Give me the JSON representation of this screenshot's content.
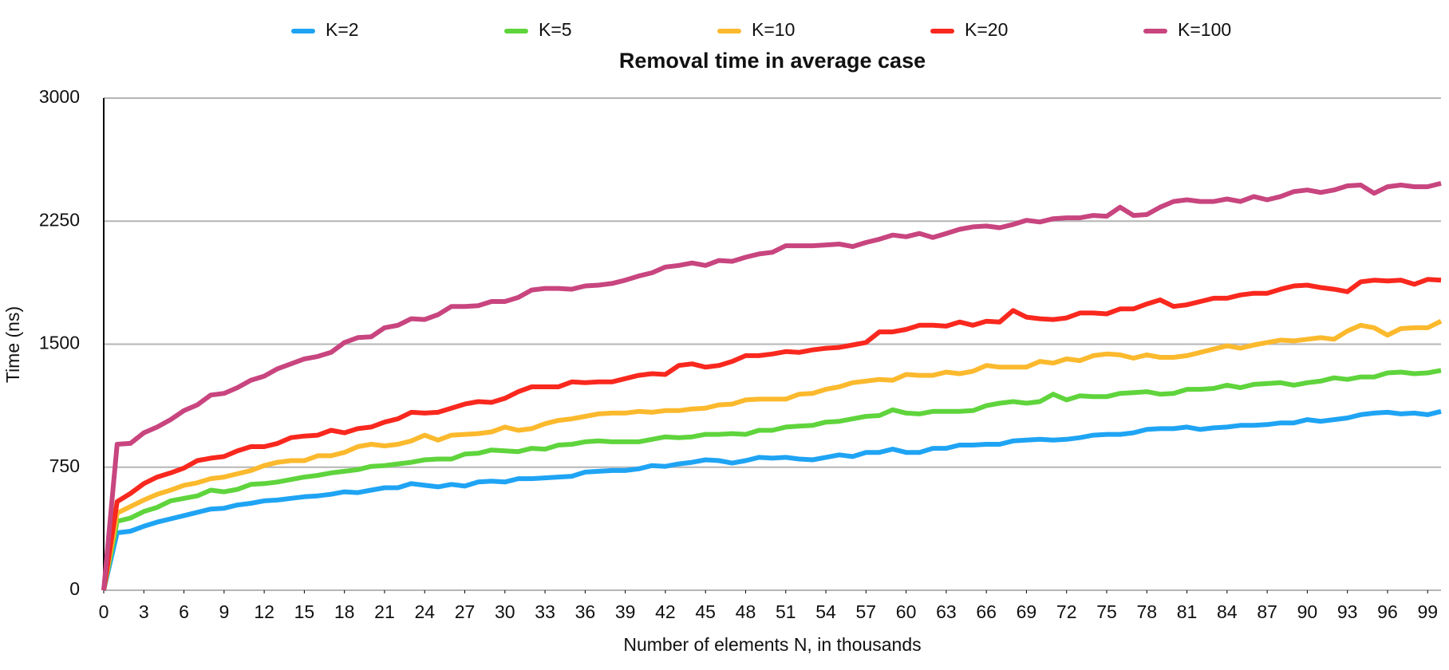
{
  "chart_data": {
    "type": "line",
    "title": "Removal time in average case",
    "x_label": "Number of elements N, in thousands",
    "y_label": "Time (ns)",
    "x": [
      0,
      1,
      2,
      3,
      4,
      5,
      6,
      7,
      8,
      9,
      10,
      11,
      12,
      13,
      14,
      15,
      16,
      17,
      18,
      19,
      20,
      21,
      22,
      23,
      24,
      25,
      26,
      27,
      28,
      29,
      30,
      31,
      32,
      33,
      34,
      35,
      36,
      37,
      38,
      39,
      40,
      41,
      42,
      43,
      44,
      45,
      46,
      47,
      48,
      49,
      50,
      51,
      52,
      53,
      54,
      55,
      56,
      57,
      58,
      59,
      60,
      61,
      62,
      63,
      64,
      65,
      66,
      67,
      68,
      69,
      70,
      71,
      72,
      73,
      74,
      75,
      76,
      77,
      78,
      79,
      80,
      81,
      82,
      83,
      84,
      85,
      86,
      87,
      88,
      89,
      90,
      91,
      92,
      93,
      94,
      95,
      96,
      97,
      98,
      99,
      100
    ],
    "xlim": [
      0,
      100
    ],
    "xticks": [
      0,
      3,
      6,
      9,
      12,
      15,
      18,
      21,
      24,
      27,
      30,
      33,
      36,
      39,
      42,
      45,
      48,
      51,
      54,
      57,
      60,
      63,
      66,
      69,
      72,
      75,
      78,
      81,
      84,
      87,
      90,
      93,
      96,
      99
    ],
    "ylim": [
      0,
      3000
    ],
    "yticks": [
      0,
      750,
      1500,
      2250,
      3000
    ],
    "grid": true,
    "legend": "top",
    "series": [
      {
        "name": "K=2",
        "color": "#1fa4f4",
        "values": [
          0,
          350,
          360,
          390,
          415,
          435,
          455,
          475,
          495,
          500,
          520,
          530,
          545,
          550,
          560,
          570,
          575,
          585,
          600,
          595,
          610,
          625,
          625,
          650,
          640,
          630,
          645,
          635,
          660,
          665,
          660,
          680,
          680,
          685,
          690,
          695,
          720,
          725,
          730,
          730,
          740,
          760,
          755,
          770,
          780,
          795,
          790,
          775,
          790,
          810,
          805,
          810,
          800,
          795,
          810,
          825,
          815,
          840,
          840,
          860,
          840,
          840,
          865,
          865,
          885,
          885,
          890,
          890,
          910,
          915,
          920,
          915,
          920,
          930,
          945,
          950,
          950,
          960,
          980,
          985,
          985,
          995,
          980,
          990,
          995,
          1005,
          1005,
          1010,
          1020,
          1020,
          1040,
          1030,
          1040,
          1050,
          1070,
          1080,
          1085,
          1075,
          1080,
          1070,
          1090
        ]
      },
      {
        "name": "K=5",
        "color": "#5fd43c",
        "values": [
          0,
          420,
          440,
          480,
          505,
          545,
          560,
          575,
          610,
          600,
          615,
          645,
          650,
          660,
          675,
          690,
          700,
          715,
          725,
          735,
          755,
          760,
          770,
          780,
          795,
          800,
          800,
          830,
          835,
          855,
          850,
          845,
          865,
          860,
          885,
          890,
          905,
          910,
          905,
          905,
          905,
          920,
          935,
          930,
          935,
          950,
          950,
          955,
          950,
          975,
          975,
          995,
          1000,
          1005,
          1025,
          1030,
          1045,
          1060,
          1065,
          1100,
          1080,
          1075,
          1090,
          1090,
          1090,
          1095,
          1125,
          1140,
          1150,
          1140,
          1150,
          1195,
          1160,
          1185,
          1180,
          1180,
          1200,
          1205,
          1210,
          1195,
          1200,
          1225,
          1225,
          1230,
          1250,
          1235,
          1255,
          1260,
          1265,
          1250,
          1265,
          1275,
          1295,
          1285,
          1300,
          1300,
          1325,
          1330,
          1320,
          1325,
          1340
        ]
      },
      {
        "name": "K=10",
        "color": "#fbb92d",
        "values": [
          0,
          470,
          510,
          550,
          585,
          610,
          640,
          655,
          680,
          690,
          710,
          730,
          760,
          780,
          790,
          790,
          820,
          820,
          840,
          875,
          890,
          880,
          890,
          910,
          945,
          915,
          945,
          950,
          955,
          965,
          995,
          975,
          985,
          1015,
          1035,
          1045,
          1060,
          1075,
          1080,
          1080,
          1090,
          1085,
          1095,
          1095,
          1105,
          1110,
          1130,
          1135,
          1160,
          1165,
          1165,
          1165,
          1195,
          1200,
          1225,
          1240,
          1265,
          1275,
          1285,
          1280,
          1315,
          1310,
          1310,
          1330,
          1320,
          1335,
          1370,
          1360,
          1360,
          1360,
          1395,
          1385,
          1410,
          1400,
          1430,
          1440,
          1435,
          1415,
          1435,
          1420,
          1420,
          1430,
          1450,
          1470,
          1490,
          1475,
          1495,
          1510,
          1525,
          1520,
          1530,
          1540,
          1530,
          1580,
          1615,
          1600,
          1555,
          1595,
          1600,
          1600,
          1640
        ]
      },
      {
        "name": "K=20",
        "color": "#f9281e",
        "values": [
          0,
          540,
          590,
          650,
          690,
          715,
          745,
          790,
          805,
          815,
          850,
          875,
          875,
          895,
          930,
          940,
          945,
          975,
          960,
          985,
          995,
          1025,
          1045,
          1085,
          1080,
          1085,
          1110,
          1135,
          1150,
          1145,
          1170,
          1210,
          1240,
          1240,
          1240,
          1270,
          1265,
          1270,
          1270,
          1290,
          1310,
          1320,
          1315,
          1370,
          1380,
          1360,
          1370,
          1395,
          1430,
          1430,
          1440,
          1455,
          1450,
          1465,
          1475,
          1480,
          1495,
          1510,
          1575,
          1575,
          1590,
          1615,
          1615,
          1610,
          1635,
          1615,
          1640,
          1635,
          1705,
          1665,
          1655,
          1650,
          1660,
          1690,
          1690,
          1685,
          1715,
          1715,
          1745,
          1770,
          1730,
          1740,
          1760,
          1780,
          1780,
          1800,
          1810,
          1810,
          1835,
          1855,
          1860,
          1845,
          1835,
          1820,
          1880,
          1890,
          1885,
          1890,
          1865,
          1895,
          1890
        ]
      },
      {
        "name": "K=100",
        "color": "#c8457f",
        "values": [
          0,
          890,
          895,
          960,
          995,
          1040,
          1095,
          1130,
          1190,
          1200,
          1235,
          1280,
          1305,
          1350,
          1380,
          1410,
          1425,
          1450,
          1510,
          1540,
          1545,
          1600,
          1615,
          1655,
          1650,
          1680,
          1730,
          1730,
          1735,
          1760,
          1760,
          1785,
          1830,
          1840,
          1840,
          1835,
          1855,
          1860,
          1870,
          1890,
          1915,
          1935,
          1970,
          1980,
          1995,
          1980,
          2010,
          2005,
          2030,
          2050,
          2060,
          2100,
          2100,
          2100,
          2105,
          2110,
          2095,
          2120,
          2140,
          2165,
          2155,
          2175,
          2150,
          2175,
          2200,
          2215,
          2220,
          2210,
          2230,
          2255,
          2245,
          2265,
          2270,
          2270,
          2285,
          2280,
          2335,
          2285,
          2290,
          2335,
          2370,
          2380,
          2370,
          2370,
          2385,
          2370,
          2400,
          2380,
          2400,
          2430,
          2440,
          2425,
          2440,
          2465,
          2470,
          2420,
          2460,
          2470,
          2460,
          2460,
          2480
        ]
      }
    ]
  }
}
